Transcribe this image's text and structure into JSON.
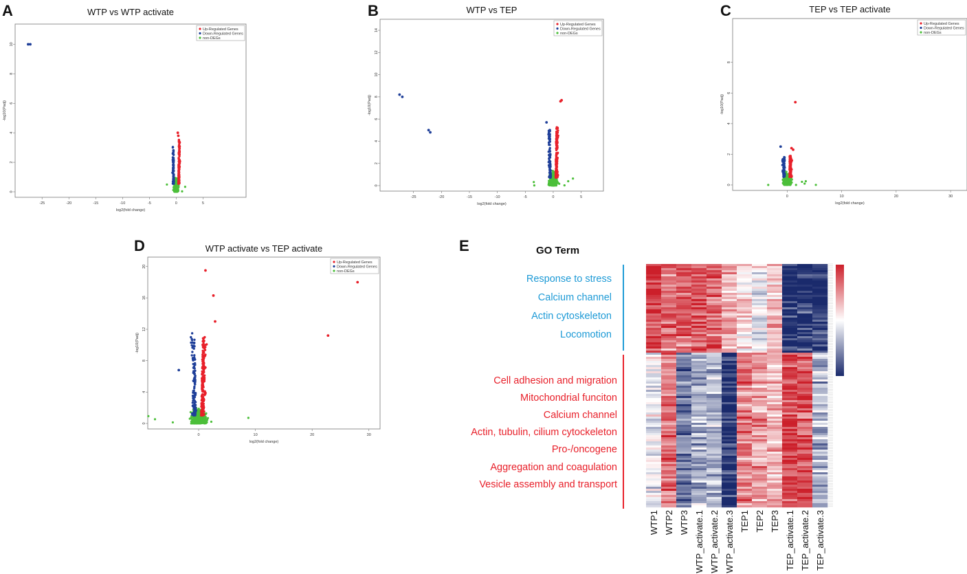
{
  "panels": {
    "A": "A",
    "B": "B",
    "C": "C",
    "D": "D",
    "E": "E"
  },
  "legend": [
    "Up-Regulated Genes",
    "Down-Regulated Genes",
    "non-DEGs"
  ],
  "colors": {
    "up": "#e8202a",
    "down": "#1f3f99",
    "non": "#4cbf3a",
    "blueText": "#1d9ad6",
    "redText": "#e8202a",
    "heatHigh": "#cc1f2a",
    "heatLow": "#1a2a6c"
  },
  "chart_data": [
    {
      "id": "A",
      "type": "scatter",
      "title": "WTP vs  WTP activate",
      "xlabel": "log2(fold change)",
      "ylabel": "-log10(Padj)",
      "xlim": [
        -29,
        12
      ],
      "ylim": [
        0,
        11
      ],
      "xticks": [
        -25,
        -20,
        -15,
        -10,
        -5,
        0,
        5
      ],
      "yticks": [
        0,
        2,
        4,
        6,
        8,
        10
      ],
      "highlight": {
        "down": [
          [
            -27.6,
            10.0
          ],
          [
            -27.2,
            10.0
          ]
        ],
        "up": [
          [
            0.3,
            4.0
          ],
          [
            0.4,
            3.8
          ]
        ]
      },
      "cloud": {
        "x0": 0,
        "spreadNon": 1.6,
        "upMax": 3.0,
        "downMax": 2.5,
        "n": 360
      }
    },
    {
      "id": "B",
      "type": "scatter",
      "title": "WTP vs TEP",
      "xlabel": "log2(fold change)",
      "ylabel": "-log10(Padj)",
      "xlim": [
        -30,
        8
      ],
      "ylim": [
        0,
        14.5
      ],
      "xticks": [
        -25,
        -20,
        -15,
        -10,
        -5,
        0,
        5
      ],
      "yticks": [
        0,
        2,
        4,
        6,
        8,
        10,
        12,
        14
      ],
      "highlight": {
        "down": [
          [
            -27.5,
            8.2
          ],
          [
            -27.0,
            8.0
          ],
          [
            -22.3,
            5.0
          ],
          [
            -22.0,
            4.8
          ],
          [
            -1.2,
            5.7
          ]
        ],
        "up": [
          [
            1.3,
            7.6
          ],
          [
            1.5,
            7.7
          ]
        ]
      },
      "cloud": {
        "x0": 0,
        "spreadNon": 2.6,
        "upMax": 4.6,
        "downMax": 4.3,
        "n": 420
      }
    },
    {
      "id": "C",
      "type": "scatter",
      "title": "TEP vs  TEP activate",
      "xlabel": "log2(fold change)",
      "ylabel": "-log10(Padj)",
      "xlim": [
        -9,
        32
      ],
      "ylim": [
        0,
        10.5
      ],
      "xticks": [
        0,
        10,
        20,
        30
      ],
      "yticks": [
        0,
        2,
        4,
        6,
        8
      ],
      "highlight": {
        "down": [
          [
            -1.2,
            2.5
          ]
        ],
        "up": [
          [
            1.5,
            5.4
          ],
          [
            0.8,
            2.4
          ],
          [
            1.1,
            2.3
          ]
        ]
      },
      "cloud": {
        "x0": 0,
        "spreadNon": 3.0,
        "upMax": 1.4,
        "downMax": 1.3,
        "n": 300
      }
    },
    {
      "id": "D",
      "type": "scatter",
      "title": "WTP activate vs  TEP activate",
      "xlabel": "log2(fold change)",
      "ylabel": "-log10(Padj)",
      "xlim": [
        -8,
        31
      ],
      "ylim": [
        0,
        20.5
      ],
      "xticks": [
        0,
        10,
        20,
        30
      ],
      "yticks": [
        0,
        4,
        8,
        12,
        16,
        20
      ],
      "highlight": {
        "down": [
          [
            -3.5,
            6.8
          ]
        ],
        "up": [
          [
            28.0,
            18.0
          ],
          [
            22.8,
            11.2
          ],
          [
            1.2,
            19.5
          ],
          [
            2.6,
            16.3
          ],
          [
            2.9,
            13.0
          ]
        ]
      },
      "cloud": {
        "x0": 0,
        "spreadNon": 5.0,
        "upMax": 10.0,
        "downMax": 10.5,
        "n": 560
      }
    }
  ],
  "heatmap": {
    "go_title": "GO Term",
    "blue_terms": [
      "Response to stress",
      "Calcium channel",
      "Actin cytoskeleton",
      "Locomotion"
    ],
    "red_terms": [
      "Cell adhesion and migration",
      "Mitochondrial funciton",
      "Calcium channel",
      "Actin, tubulin, cilium cytockeleton",
      "Pro-/oncogene",
      "Aggregation and coagulation",
      "Vesicle assembly and transport"
    ],
    "samples": [
      "WTP1",
      "WTP2",
      "WTP3",
      "WTP_activate.1",
      "WTP_activate.2",
      "WTP_activate.3",
      "TEP1",
      "TEP2",
      "TEP3",
      "TEP_activate.1",
      "TEP_activate.2",
      "TEP_activate.3"
    ],
    "cluster1_means": [
      0.85,
      0.6,
      0.7,
      0.75,
      0.7,
      0.35,
      0.15,
      -0.1,
      0.3,
      -0.95,
      -0.9,
      -0.95
    ],
    "cluster2_means": [
      -0.05,
      0.6,
      -0.6,
      -0.35,
      -0.3,
      -0.95,
      0.55,
      0.45,
      0.3,
      0.85,
      0.75,
      -0.35
    ],
    "color_scale": [
      -1,
      1
    ]
  }
}
